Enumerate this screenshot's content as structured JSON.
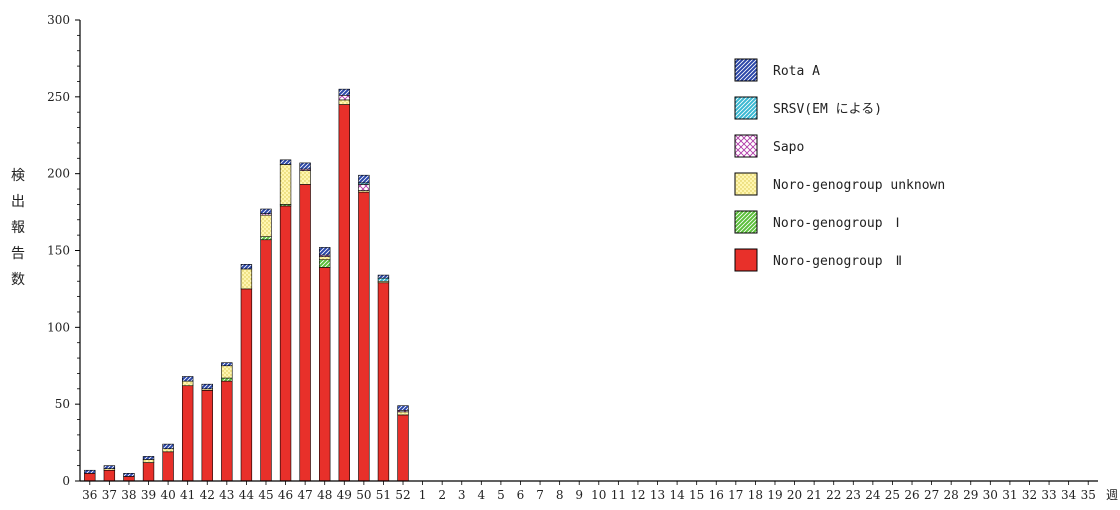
{
  "chart_data": {
    "type": "bar",
    "stacked": true,
    "title": "",
    "xlabel": "週",
    "ylabel": "検出報告数",
    "ylim": [
      0,
      300
    ],
    "yticks": [
      0,
      50,
      100,
      150,
      200,
      250,
      300
    ],
    "categories": [
      "36",
      "37",
      "38",
      "39",
      "40",
      "41",
      "42",
      "43",
      "44",
      "45",
      "46",
      "47",
      "48",
      "49",
      "50",
      "51",
      "52",
      "1",
      "2",
      "3",
      "4",
      "5",
      "6",
      "7",
      "8",
      "9",
      "10",
      "11",
      "12",
      "13",
      "14",
      "15",
      "16",
      "17",
      "18",
      "19",
      "20",
      "21",
      "22",
      "23",
      "24",
      "25",
      "26",
      "27",
      "28",
      "29",
      "30",
      "31",
      "32",
      "33",
      "34",
      "35"
    ],
    "legend_position": "top-right",
    "series": [
      {
        "name": "Noro-genogroup　Ⅱ",
        "color": "#e8302a",
        "pattern": "solid",
        "values": [
          5,
          7,
          3,
          12,
          19,
          62,
          59,
          65,
          125,
          157,
          179,
          193,
          139,
          245,
          188,
          129,
          43,
          0,
          0,
          0,
          0,
          0,
          0,
          0,
          0,
          0,
          0,
          0,
          0,
          0,
          0,
          0,
          0,
          0,
          0,
          0,
          0,
          0,
          0,
          0,
          0,
          0,
          0,
          0,
          0,
          0,
          0,
          0,
          0,
          0,
          0,
          0
        ]
      },
      {
        "name": "Noro-genogroup　Ⅰ",
        "color": "#5bbf3a",
        "pattern": "diagonal",
        "values": [
          0,
          0,
          0,
          0,
          0,
          0,
          0,
          2,
          0,
          2,
          1,
          0,
          5,
          0,
          0,
          0,
          0,
          0,
          0,
          0,
          0,
          0,
          0,
          0,
          0,
          0,
          0,
          0,
          0,
          0,
          0,
          0,
          0,
          0,
          0,
          0,
          0,
          0,
          0,
          0,
          0,
          0,
          0,
          0,
          0,
          0,
          0,
          0,
          0,
          0,
          0,
          0
        ]
      },
      {
        "name": "Noro-genogroup unknown",
        "color": "#f2e67a",
        "pattern": "dots",
        "values": [
          0,
          1,
          0,
          2,
          2,
          3,
          1,
          8,
          13,
          14,
          26,
          9,
          2,
          3,
          1,
          1,
          2,
          0,
          0,
          0,
          0,
          0,
          0,
          0,
          0,
          0,
          0,
          0,
          0,
          0,
          0,
          0,
          0,
          0,
          0,
          0,
          0,
          0,
          0,
          0,
          0,
          0,
          0,
          0,
          0,
          0,
          0,
          0,
          0,
          0,
          0,
          0
        ]
      },
      {
        "name": "Sapo",
        "color": "#b03aa8",
        "pattern": "cross",
        "values": [
          0,
          0,
          0,
          0,
          0,
          0,
          0,
          0,
          0,
          1,
          0,
          1,
          1,
          3,
          4,
          0,
          1,
          0,
          0,
          0,
          0,
          0,
          0,
          0,
          0,
          0,
          0,
          0,
          0,
          0,
          0,
          0,
          0,
          0,
          0,
          0,
          0,
          0,
          0,
          0,
          0,
          0,
          0,
          0,
          0,
          0,
          0,
          0,
          0,
          0,
          0,
          0
        ]
      },
      {
        "name": "SRSV(EM による)",
        "color": "#3ab8d2",
        "pattern": "diagonal",
        "values": [
          0,
          0,
          0,
          0,
          0,
          0,
          0,
          0,
          0,
          0,
          0,
          0,
          0,
          0,
          1,
          2,
          0,
          0,
          0,
          0,
          0,
          0,
          0,
          0,
          0,
          0,
          0,
          0,
          0,
          0,
          0,
          0,
          0,
          0,
          0,
          0,
          0,
          0,
          0,
          0,
          0,
          0,
          0,
          0,
          0,
          0,
          0,
          0,
          0,
          0,
          0,
          0
        ]
      },
      {
        "name": "Rota A",
        "color": "#2a46a8",
        "pattern": "diagonal",
        "values": [
          2,
          2,
          2,
          2,
          3,
          3,
          3,
          2,
          3,
          3,
          3,
          4,
          5,
          4,
          5,
          2,
          3,
          0,
          0,
          0,
          0,
          0,
          0,
          0,
          0,
          0,
          0,
          0,
          0,
          0,
          0,
          0,
          0,
          0,
          0,
          0,
          0,
          0,
          0,
          0,
          0,
          0,
          0,
          0,
          0,
          0,
          0,
          0,
          0,
          0,
          0,
          0
        ]
      }
    ]
  }
}
